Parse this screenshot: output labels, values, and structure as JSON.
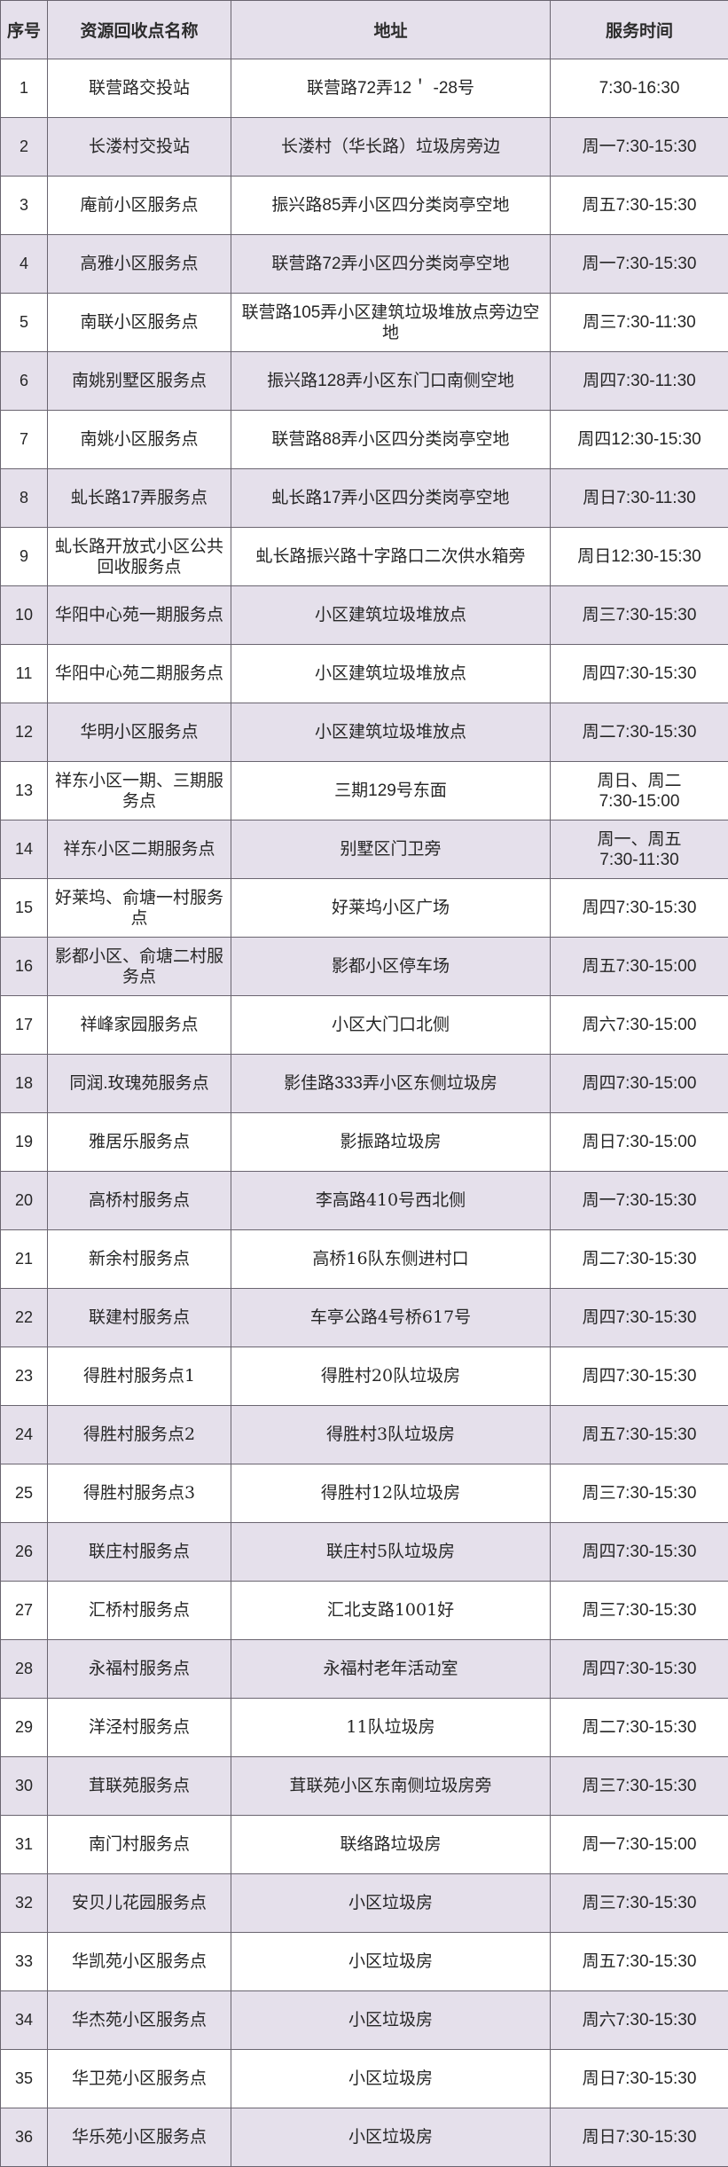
{
  "colors": {
    "page_bg": "#ffffff",
    "stripe_bg": "#e5e0eb",
    "border": "#6a6570",
    "text": "#262626"
  },
  "table": {
    "columns": [
      {
        "key": "num",
        "label": "序号"
      },
      {
        "key": "name",
        "label": "资源回收点名称"
      },
      {
        "key": "address",
        "label": "地址"
      },
      {
        "key": "time",
        "label": "服务时间"
      }
    ],
    "rows": [
      {
        "num": "1",
        "name": "联营路交投站",
        "address": "联营路72弄12＇ -28号",
        "time": "7:30-16:30"
      },
      {
        "num": "2",
        "name": "长溇村交投站",
        "address": "长溇村（华长路）垃圾房旁边",
        "time": "周一7:30-15:30",
        "serif_address": true
      },
      {
        "num": "3",
        "name": "庵前小区服务点",
        "address": "振兴路85弄小区四分类岗亭空地",
        "time": "周五7:30-15:30"
      },
      {
        "num": "4",
        "name": "高雅小区服务点",
        "address": "联营路72弄小区四分类岗亭空地",
        "time": "周一7:30-15:30"
      },
      {
        "num": "5",
        "name": "南联小区服务点",
        "address": "联营路105弄小区建筑垃圾堆放点旁边空地",
        "time": "周三7:30-11:30"
      },
      {
        "num": "6",
        "name": "南姚别墅区服务点",
        "address": "振兴路128弄小区东门口南侧空地",
        "time": "周四7:30-11:30"
      },
      {
        "num": "7",
        "name": "南姚小区服务点",
        "address": "联营路88弄小区四分类岗亭空地",
        "time": "周四12:30-15:30"
      },
      {
        "num": "8",
        "name": "虬长路17弄服务点",
        "address": "虬长路17弄小区四分类岗亭空地",
        "time": "周日7:30-11:30"
      },
      {
        "num": "9",
        "name": "虬长路开放式小区公共回收服务点",
        "address": "虬长路振兴路十字路口二次供水箱旁",
        "time": "周日12:30-15:30"
      },
      {
        "num": "10",
        "name": "华阳中心苑一期服务点",
        "address": "小区建筑垃圾堆放点",
        "time": "周三7:30-15:30"
      },
      {
        "num": "11",
        "name": "华阳中心苑二期服务点",
        "address": "小区建筑垃圾堆放点",
        "time": "周四7:30-15:30"
      },
      {
        "num": "12",
        "name": "华明小区服务点",
        "address": "小区建筑垃圾堆放点",
        "time": "周二7:30-15:30"
      },
      {
        "num": "13",
        "name": "祥东小区一期、三期服务点",
        "address": "三期129号东面",
        "time": "周日、周二\n7:30-15:00"
      },
      {
        "num": "14",
        "name": "祥东小区二期服务点",
        "address": "别墅区门卫旁",
        "time": "周一、周五\n7:30-11:30"
      },
      {
        "num": "15",
        "name": "好莱坞、俞塘一村服务点",
        "address": "好莱坞小区广场",
        "time": "周四7:30-15:30"
      },
      {
        "num": "16",
        "name": "影都小区、俞塘二村服务点",
        "address": "影都小区停车场",
        "time": "周五7:30-15:00"
      },
      {
        "num": "17",
        "name": "祥峰家园服务点",
        "address": "小区大门口北侧",
        "time": "周六7:30-15:00"
      },
      {
        "num": "18",
        "name": "同润.玫瑰苑服务点",
        "address": "影佳路333弄小区东侧垃圾房",
        "time": "周四7:30-15:00"
      },
      {
        "num": "19",
        "name": "雅居乐服务点",
        "address": "影振路垃圾房",
        "time": "周日7:30-15:00"
      },
      {
        "num": "20",
        "name": "高桥村服务点",
        "address": "李高路410号西北侧",
        "time": "周一7:30-15:30",
        "serif_address": true
      },
      {
        "num": "21",
        "name": "新余村服务点",
        "address": "高桥16队东侧进村口",
        "time": "周二7:30-15:30",
        "serif_name": true,
        "serif_address": true
      },
      {
        "num": "22",
        "name": "联建村服务点",
        "address": "车亭公路4号桥617号",
        "time": "周四7:30-15:30",
        "serif_address": true
      },
      {
        "num": "23",
        "name": "得胜村服务点1",
        "address": "得胜村20队垃圾房",
        "time": "周四7:30-15:30",
        "serif_name": true,
        "serif_address": true
      },
      {
        "num": "24",
        "name": "得胜村服务点2",
        "address": "得胜村3队垃圾房",
        "time": "周五7:30-15:30",
        "serif_name": true,
        "serif_address": true
      },
      {
        "num": "25",
        "name": "得胜村服务点3",
        "address": "得胜村12队垃圾房",
        "time": "周三7:30-15:30",
        "serif_name": true,
        "serif_address": true
      },
      {
        "num": "26",
        "name": "联庄村服务点",
        "address": "联庄村5队垃圾房",
        "time": "周四7:30-15:30",
        "serif_address": true
      },
      {
        "num": "27",
        "name": "汇桥村服务点",
        "address": "汇北支路1001好",
        "time": "周三7:30-15:30",
        "serif_address": true
      },
      {
        "num": "28",
        "name": "永福村服务点",
        "address": "永福村老年活动室",
        "time": "周四7:30-15:30"
      },
      {
        "num": "29",
        "name": "洋泾村服务点",
        "address": "11队垃圾房",
        "time": "周二7:30-15:30",
        "serif_address": true
      },
      {
        "num": "30",
        "name": "茸联苑服务点",
        "address": "茸联苑小区东南侧垃圾房旁",
        "time": "周三7:30-15:30"
      },
      {
        "num": "31",
        "name": "南门村服务点",
        "address": "联络路垃圾房",
        "time": "周一7:30-15:00"
      },
      {
        "num": "32",
        "name": "安贝儿花园服务点",
        "address": "小区垃圾房",
        "time": "周三7:30-15:30"
      },
      {
        "num": "33",
        "name": "华凯苑小区服务点",
        "address": "小区垃圾房",
        "time": "周五7:30-15:30"
      },
      {
        "num": "34",
        "name": "华杰苑小区服务点",
        "address": "小区垃圾房",
        "time": "周六7:30-15:30"
      },
      {
        "num": "35",
        "name": "华卫苑小区服务点",
        "address": "小区垃圾房",
        "time": "周日7:30-15:30"
      },
      {
        "num": "36",
        "name": "华乐苑小区服务点",
        "address": "小区垃圾房",
        "time": "周日7:30-15:30"
      }
    ]
  }
}
